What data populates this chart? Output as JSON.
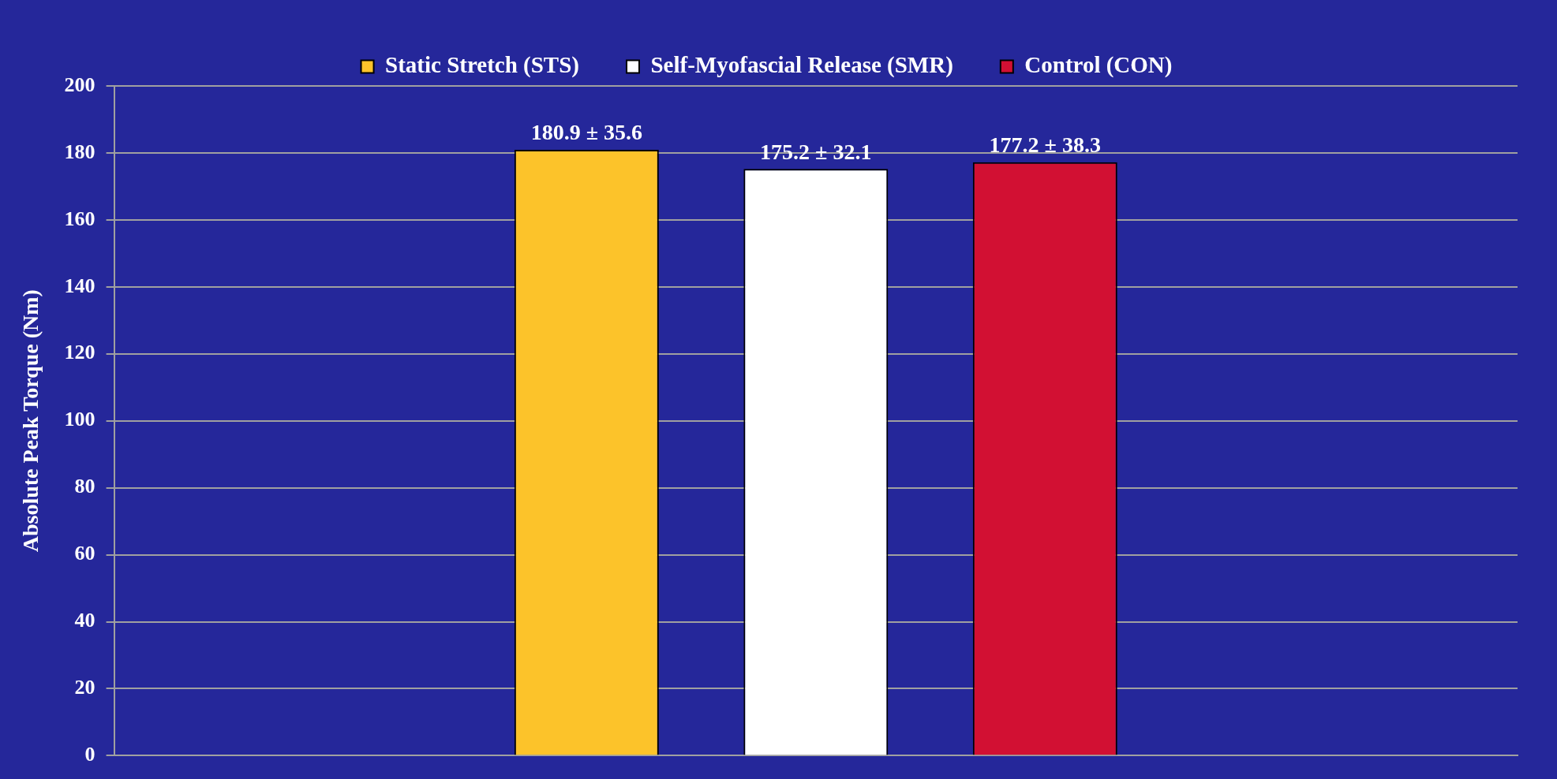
{
  "chart_data": {
    "type": "bar",
    "ylabel": "Absolute Peak Torque (Nm)",
    "categories": [
      null
    ],
    "series": [
      {
        "name": "Static Stretch (STS)",
        "color": "#fcc32a",
        "values": [
          180.9
        ],
        "value_labels": [
          "180.9 ± 35.6"
        ]
      },
      {
        "name": "Self-Myofascial Release (SMR)",
        "color": "#ffffff",
        "values": [
          175.2
        ],
        "value_labels": [
          "175.2 ± 32.1"
        ]
      },
      {
        "name": "Control (CON)",
        "color": "#d21033",
        "values": [
          177.2
        ],
        "value_labels": [
          "177.2 ± 38.3"
        ]
      }
    ],
    "ylim": [
      0,
      200
    ],
    "yticks": [
      0,
      20,
      40,
      60,
      80,
      100,
      120,
      140,
      160,
      180,
      200
    ],
    "grid": "y",
    "legend": "top"
  }
}
